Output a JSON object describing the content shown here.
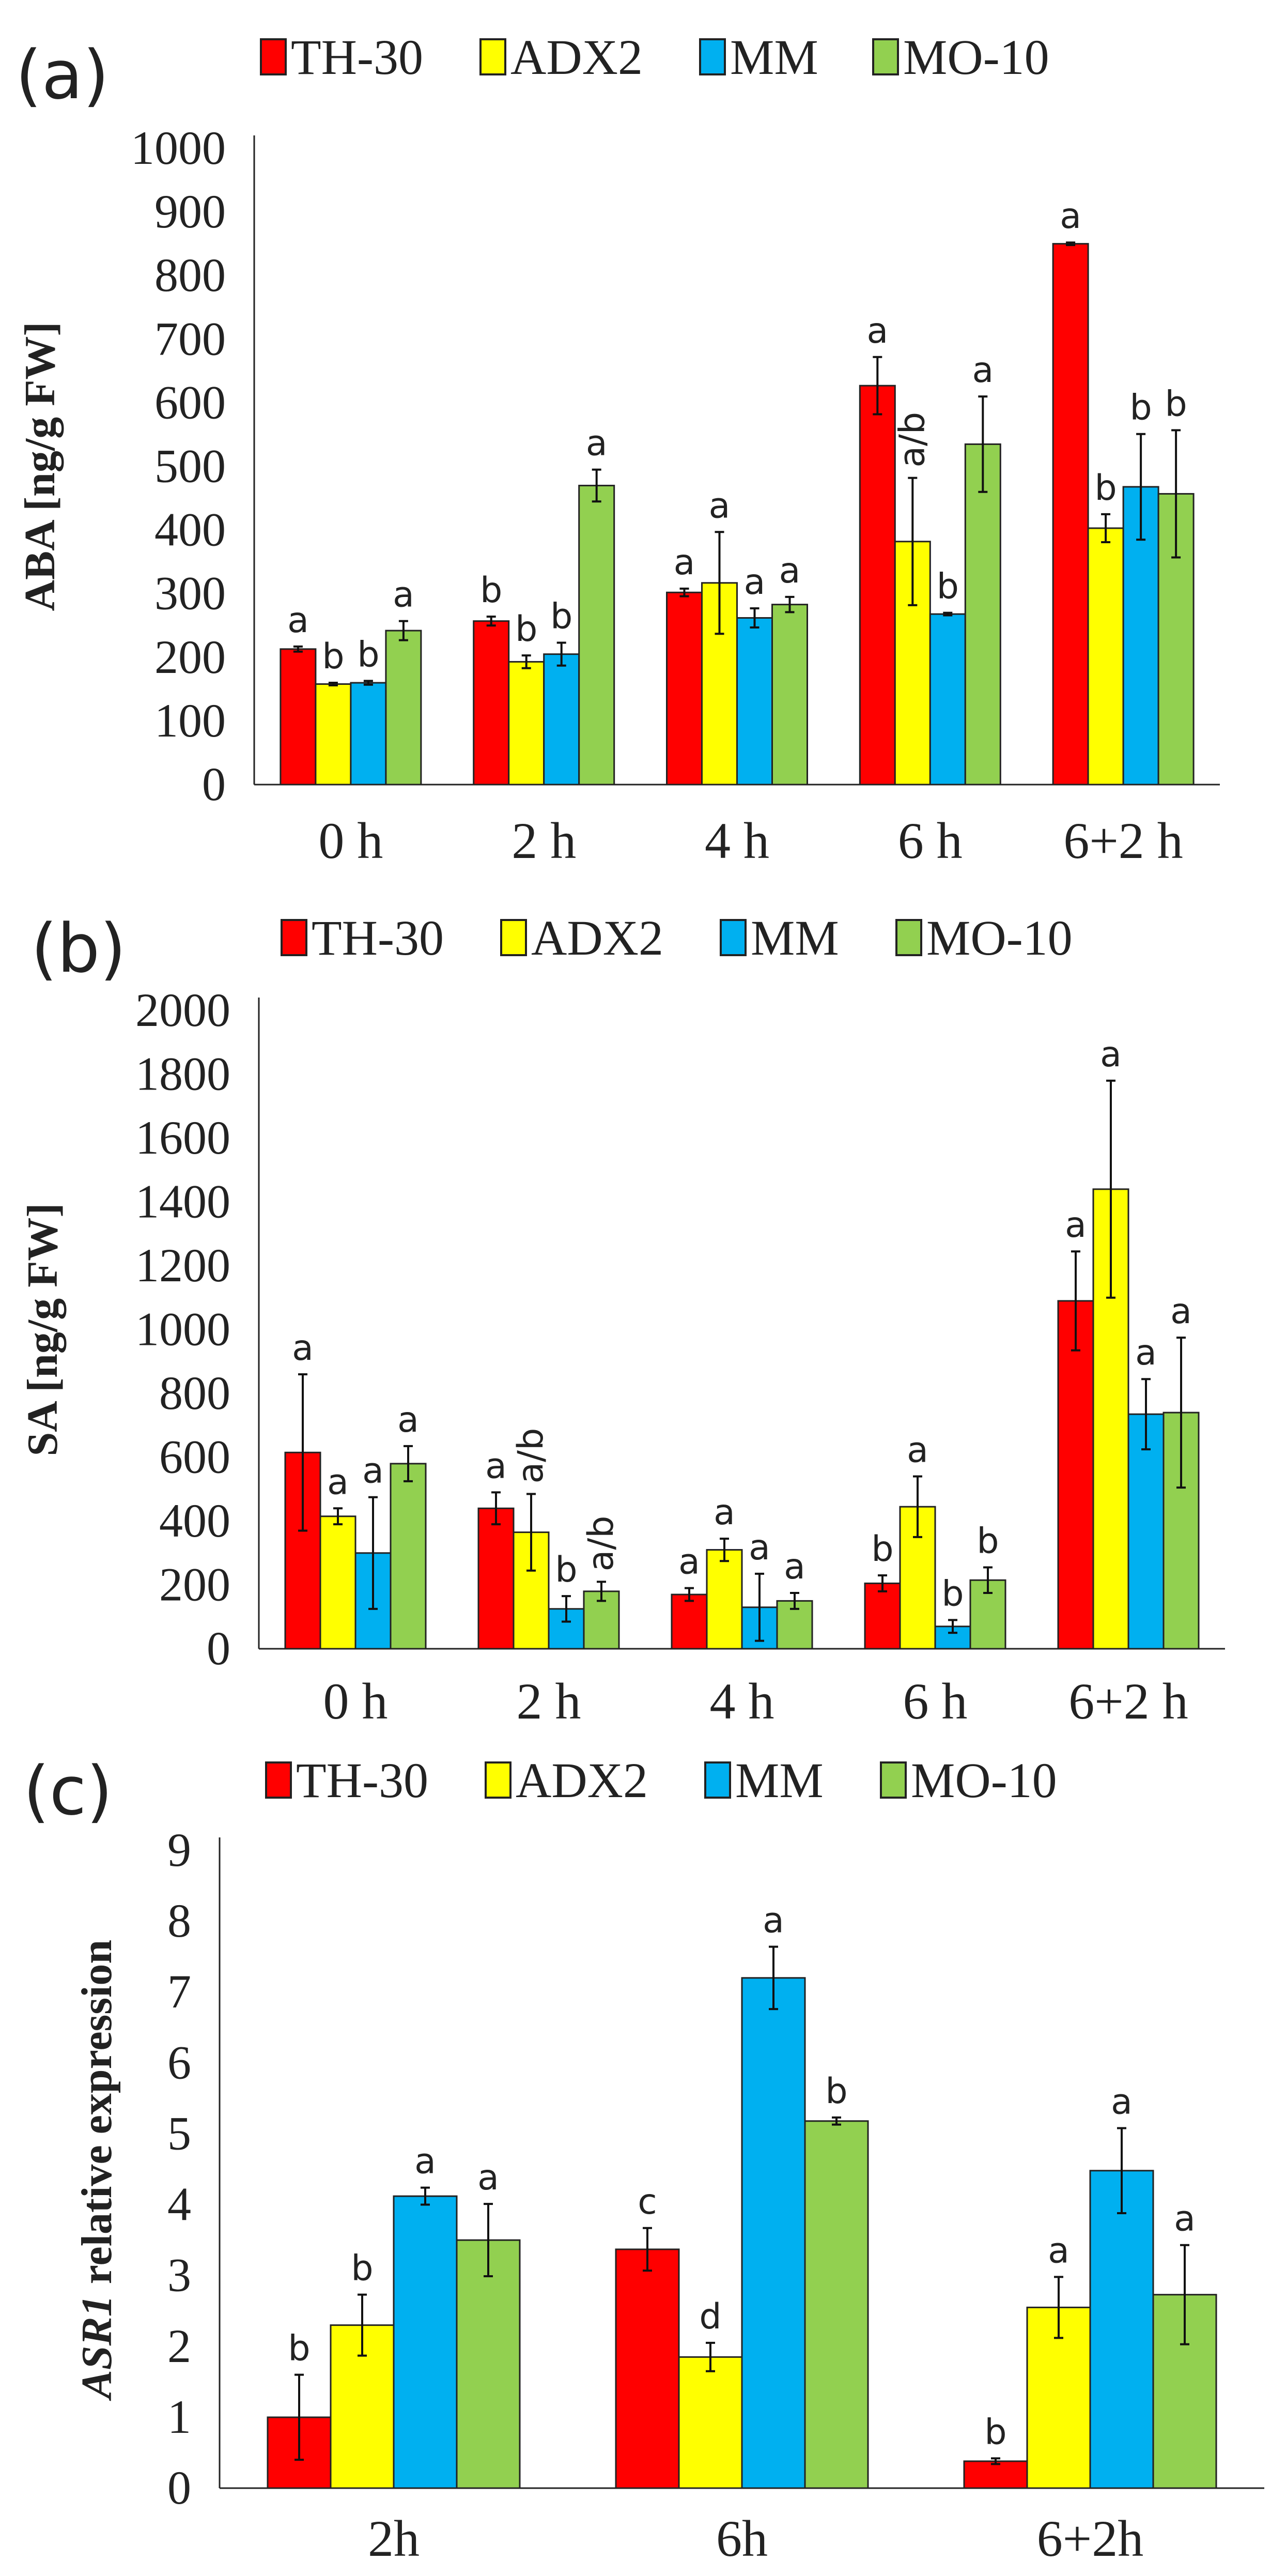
{
  "colors": {
    "TH-30": "#FF0000",
    "ADX2": "#FFFF00",
    "MM": "#00B0F0",
    "MO-10": "#92D050"
  },
  "chart_data": [
    {
      "type": "bar",
      "panel_label": "(a)",
      "title": "",
      "xlabel": "",
      "ylabel": "ABA [ng/g FW]",
      "ylim": [
        0,
        1000
      ],
      "yticks": [
        0,
        100,
        200,
        300,
        400,
        500,
        600,
        700,
        800,
        900,
        1000
      ],
      "categories": [
        "0 h",
        "2 h",
        "4 h",
        "6 h",
        "6+2 h"
      ],
      "legend_position": "top",
      "series": [
        {
          "name": "TH-30",
          "values": [
            213,
            257,
            302,
            627,
            850
          ],
          "errors": [
            4,
            7,
            6,
            45,
            2
          ],
          "letters": [
            "a",
            "b",
            "a",
            "a",
            "a"
          ]
        },
        {
          "name": "ADX2",
          "values": [
            158,
            193,
            317,
            382,
            403
          ],
          "errors": [
            2,
            10,
            80,
            100,
            22
          ],
          "letters": [
            "b",
            "b",
            "a",
            "a/b",
            "b"
          ]
        },
        {
          "name": "MM",
          "values": [
            160,
            205,
            262,
            268,
            468
          ],
          "errors": [
            3,
            18,
            15,
            2,
            83
          ],
          "letters": [
            "b",
            "b",
            "a",
            "b",
            "b"
          ]
        },
        {
          "name": "MO-10",
          "values": [
            242,
            470,
            283,
            535,
            457
          ],
          "errors": [
            15,
            25,
            12,
            75,
            100
          ],
          "letters": [
            "a",
            "a",
            "a",
            "a",
            "b"
          ]
        }
      ]
    },
    {
      "type": "bar",
      "panel_label": "(b)",
      "title": "",
      "xlabel": "",
      "ylabel": "SA [ng/g FW]",
      "ylim": [
        0,
        2000
      ],
      "yticks": [
        0,
        200,
        400,
        600,
        800,
        1000,
        1200,
        1400,
        1600,
        1800,
        2000
      ],
      "categories": [
        "0 h",
        "2 h",
        "4 h",
        "6 h",
        "6+2 h"
      ],
      "legend_position": "top",
      "series": [
        {
          "name": "TH-30",
          "values": [
            615,
            440,
            170,
            205,
            1090
          ],
          "errors": [
            245,
            50,
            20,
            25,
            155
          ],
          "letters": [
            "a",
            "a",
            "a",
            "b",
            "a"
          ]
        },
        {
          "name": "ADX2",
          "values": [
            415,
            365,
            310,
            445,
            1440
          ],
          "errors": [
            25,
            120,
            35,
            95,
            340
          ],
          "letters": [
            "a",
            "a/b",
            "a",
            "a",
            "a"
          ]
        },
        {
          "name": "MM",
          "values": [
            300,
            125,
            130,
            70,
            735
          ],
          "errors": [
            175,
            40,
            105,
            20,
            110
          ],
          "letters": [
            "a",
            "b",
            "a",
            "b",
            "a"
          ]
        },
        {
          "name": "MO-10",
          "values": [
            580,
            180,
            150,
            215,
            740
          ],
          "errors": [
            55,
            30,
            25,
            40,
            235
          ],
          "letters": [
            "a",
            "a/b",
            "a",
            "b",
            "a"
          ]
        }
      ]
    },
    {
      "type": "bar",
      "panel_label": "(c)",
      "title": "",
      "xlabel": "",
      "ylabel_italic": "ASR1",
      "ylabel": " relative expression",
      "ylim": [
        0,
        9
      ],
      "yticks": [
        0,
        1,
        2,
        3,
        4,
        5,
        6,
        7,
        8,
        9
      ],
      "categories": [
        "2h",
        "6h",
        "6+2h"
      ],
      "legend_position": "top",
      "series": [
        {
          "name": "TH-30",
          "values": [
            1.0,
            3.37,
            0.38
          ],
          "errors": [
            0.6,
            0.3,
            0.04
          ],
          "letters": [
            "b",
            "c",
            "b"
          ]
        },
        {
          "name": "ADX2",
          "values": [
            2.3,
            1.85,
            2.55
          ],
          "errors": [
            0.43,
            0.2,
            0.43
          ],
          "letters": [
            "b",
            "d",
            "a"
          ]
        },
        {
          "name": "MM",
          "values": [
            4.12,
            7.2,
            4.48
          ],
          "errors": [
            0.12,
            0.44,
            0.6
          ],
          "letters": [
            "a",
            "a",
            "a"
          ]
        },
        {
          "name": "MO-10",
          "values": [
            3.5,
            5.18,
            2.73
          ],
          "errors": [
            0.51,
            0.05,
            0.7
          ],
          "letters": [
            "a",
            "b",
            "a"
          ]
        }
      ]
    }
  ]
}
